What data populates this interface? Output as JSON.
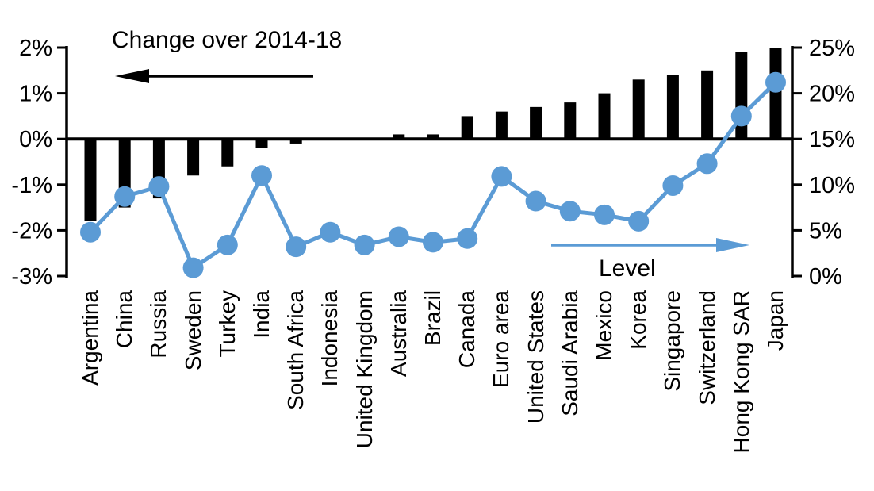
{
  "chart_data": {
    "type": "combo-bar-line",
    "categories": [
      "Argentina",
      "China",
      "Russia",
      "Sweden",
      "Turkey",
      "India",
      "South Africa",
      "Indonesia",
      "United Kingdom",
      "Australia",
      "Brazil",
      "Canada",
      "Euro area",
      "United States",
      "Saudi Arabia",
      "Mexico",
      "Korea",
      "Singapore",
      "Switzerland",
      "Hong Kong SAR",
      "Japan"
    ],
    "series": [
      {
        "name": "Change over 2014-18",
        "type": "bar",
        "axis": "left",
        "values": [
          -1.8,
          -1.5,
          -1.3,
          -0.8,
          -0.6,
          -0.2,
          -0.1,
          0,
          0,
          0.1,
          0.1,
          0.5,
          0.6,
          0.7,
          0.8,
          1.0,
          1.3,
          1.4,
          1.5,
          1.9,
          2.0
        ]
      },
      {
        "name": "Level",
        "type": "line",
        "axis": "right",
        "values": [
          4.8,
          8.7,
          9.8,
          0.9,
          3.4,
          11.0,
          3.2,
          4.8,
          3.4,
          4.3,
          3.7,
          4.1,
          10.9,
          8.2,
          7.1,
          6.7,
          6.0,
          9.9,
          12.3,
          17.5,
          21.2
        ]
      }
    ],
    "left_axis": {
      "tick_labels": [
        "2%",
        "1%",
        "0%",
        "-1%",
        "-2%",
        "-3%"
      ],
      "tick_values": [
        2,
        1,
        0,
        -1,
        -2,
        -3
      ],
      "min": -3,
      "max": 2
    },
    "right_axis": {
      "tick_labels": [
        "25%",
        "20%",
        "15%",
        "10%",
        "5%",
        "0%"
      ],
      "tick_values": [
        25,
        20,
        15,
        10,
        5,
        0
      ],
      "min": 0,
      "max": 25
    },
    "grid": false,
    "legend_position": "annotated-arrows"
  },
  "annotations": {
    "bar_label": "Change over 2014-18",
    "line_label": "Level"
  },
  "colors": {
    "bar": "#000000",
    "line": "#5B9BD5",
    "axis": "#000000",
    "text": "#000000",
    "background": "#FFFFFF"
  }
}
